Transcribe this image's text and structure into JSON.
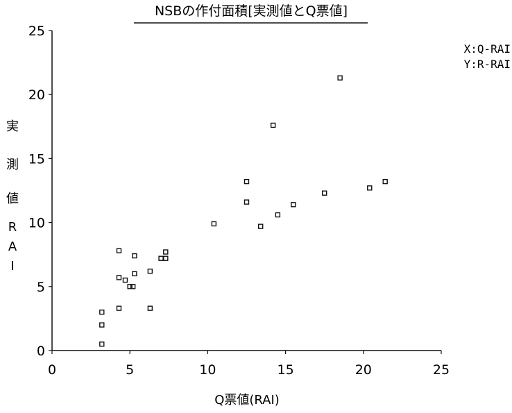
{
  "chart_data": {
    "type": "scatter",
    "title": "NSBの作付面積[実測値とQ票値]",
    "xlabel": "Q票値(RAI)",
    "ylabel_chars": [
      "実",
      "測",
      "値",
      "R",
      "A",
      "I"
    ],
    "legend_lines": [
      "X:Q-RAI",
      "Y:R-RAI"
    ],
    "xlim": [
      0,
      25
    ],
    "ylim": [
      0,
      25
    ],
    "xticks": [
      0,
      5,
      10,
      15,
      20,
      25
    ],
    "yticks": [
      0,
      5,
      10,
      15,
      20,
      25
    ],
    "x": [
      3.2,
      3.2,
      3.2,
      4.3,
      4.3,
      4.3,
      4.7,
      5.0,
      5.2,
      5.3,
      5.3,
      6.3,
      6.3,
      7.0,
      7.3,
      7.3,
      10.4,
      12.5,
      12.5,
      13.4,
      14.2,
      14.5,
      15.5,
      17.5,
      18.5,
      20.4,
      21.4
    ],
    "y": [
      0.5,
      2.0,
      3.0,
      3.3,
      5.7,
      7.8,
      5.5,
      5.0,
      5.0,
      6.0,
      7.4,
      3.3,
      6.2,
      7.2,
      7.2,
      7.7,
      9.9,
      11.6,
      13.2,
      9.7,
      17.6,
      10.6,
      11.4,
      12.3,
      21.3,
      12.7,
      13.2
    ],
    "grid": false
  }
}
